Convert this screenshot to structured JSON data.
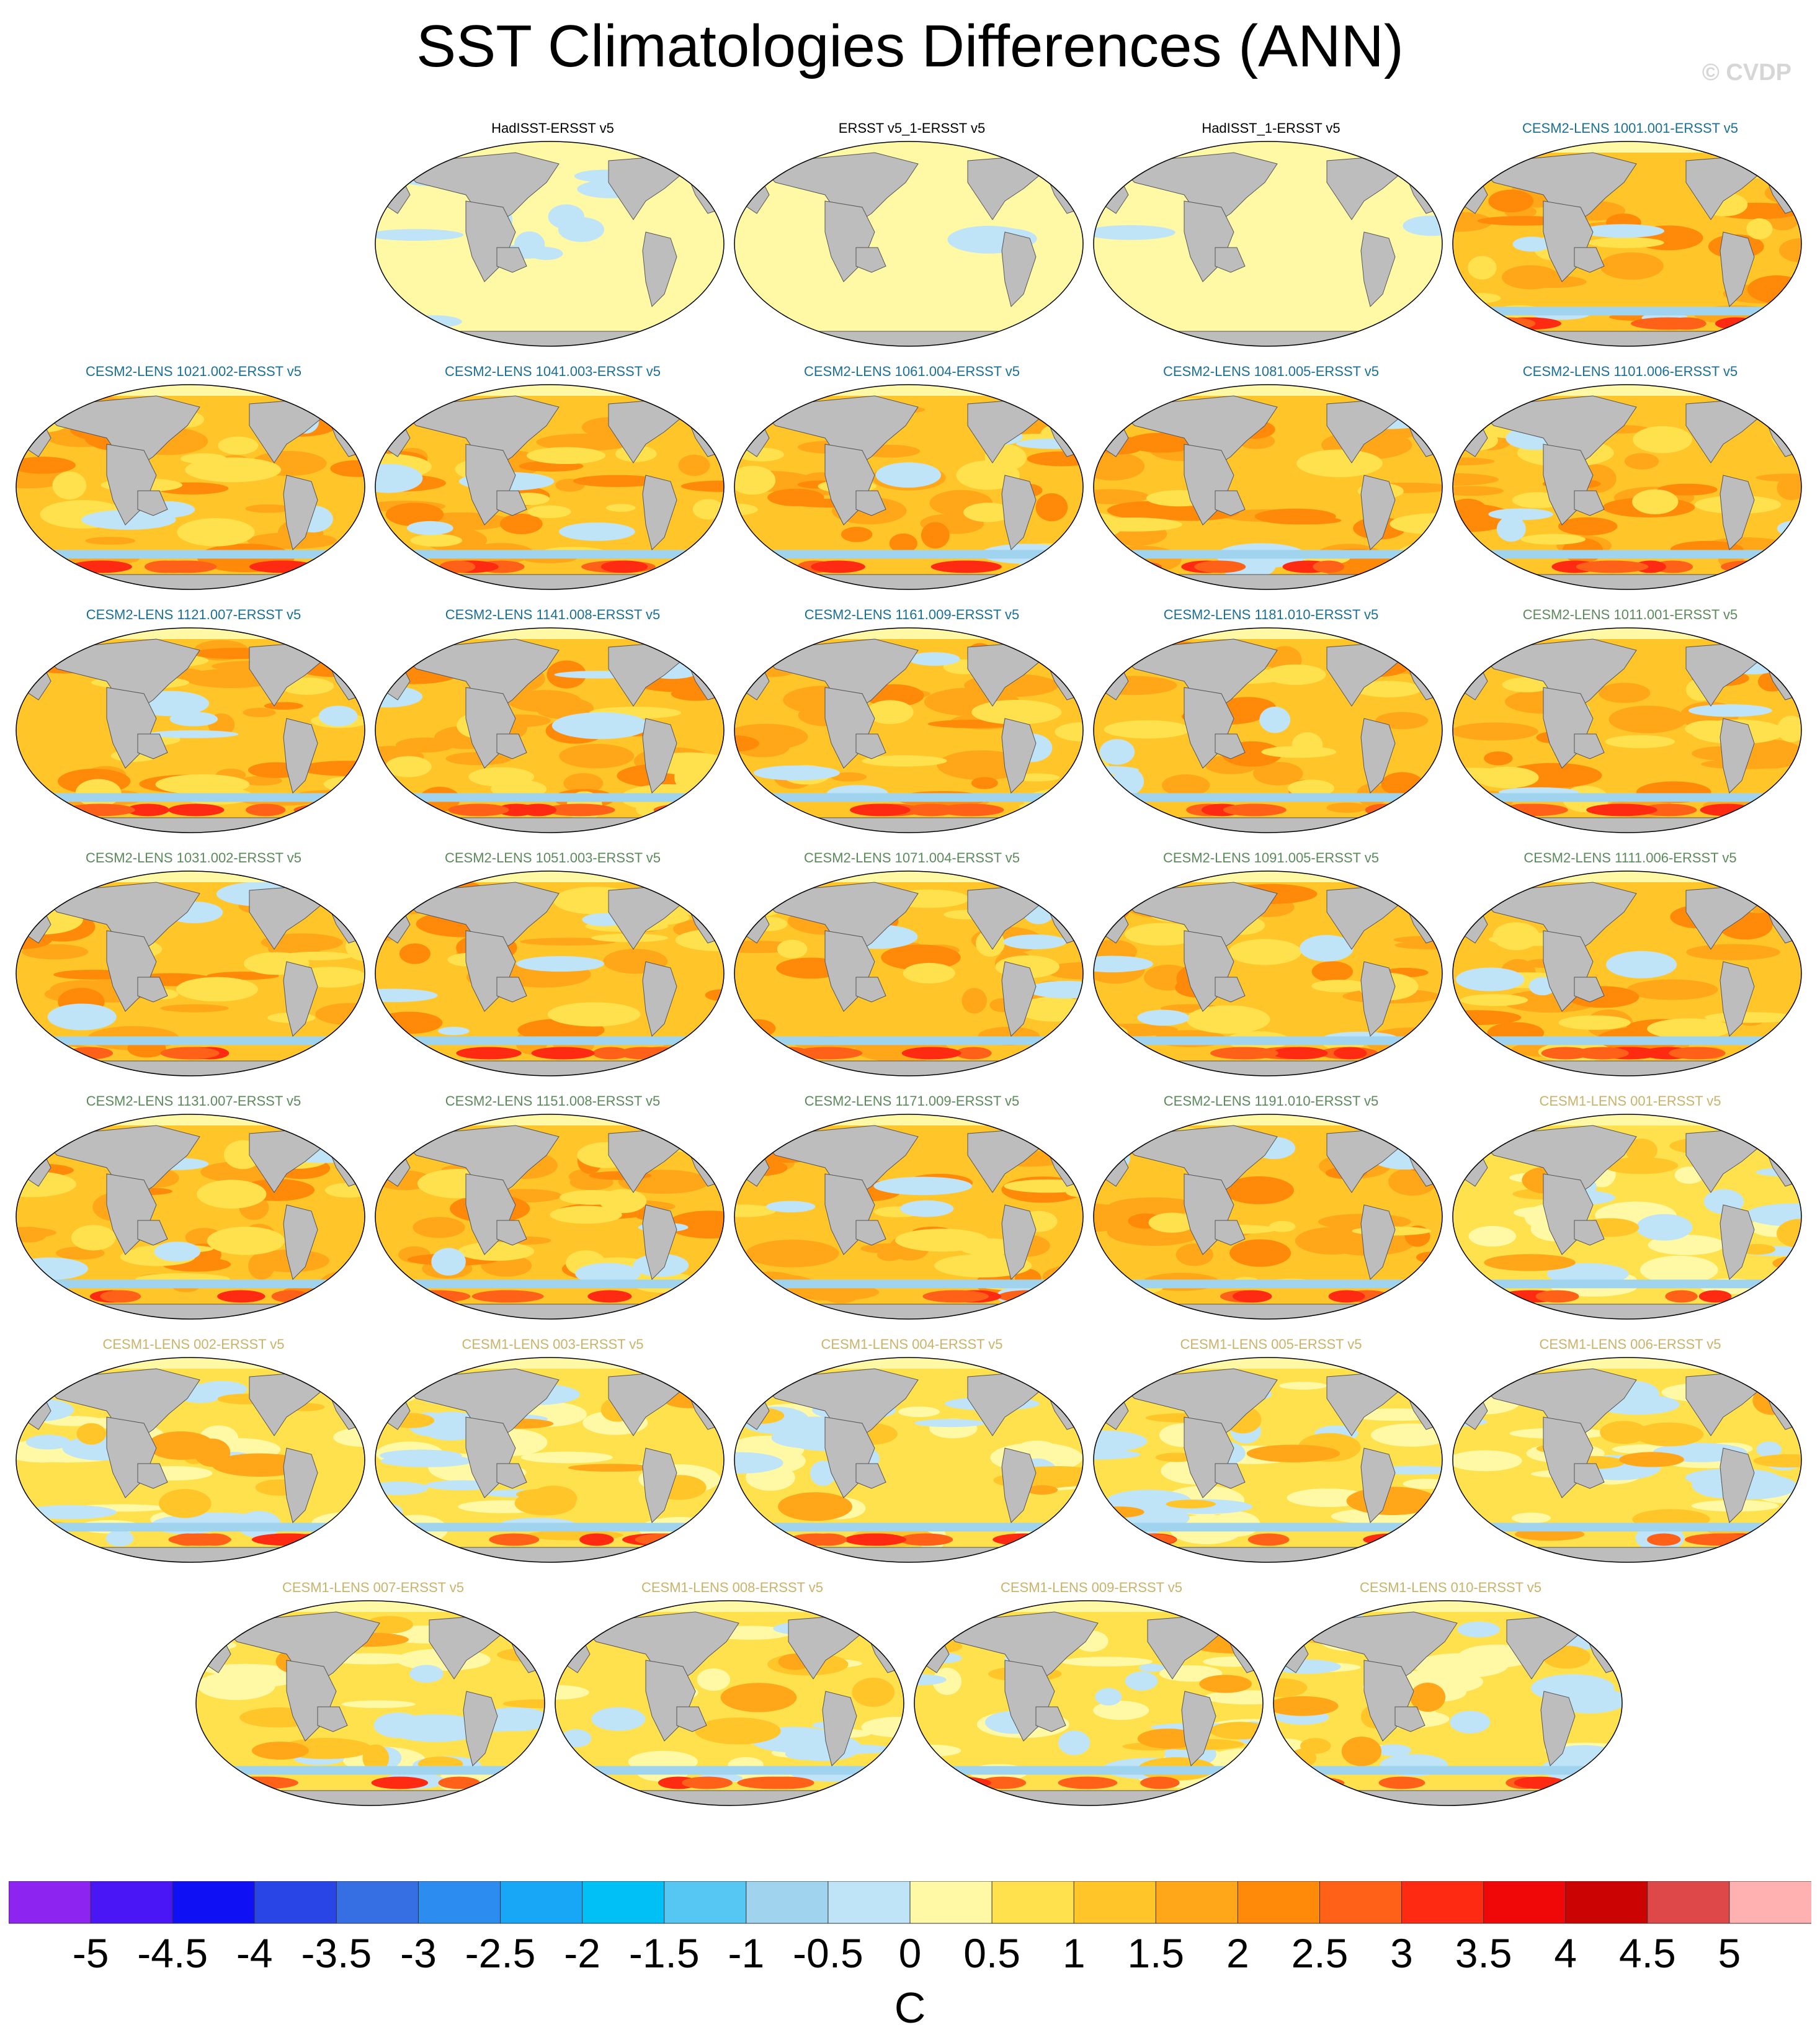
{
  "title": "SST Climatologies Differences (ANN)",
  "watermark": "© CVDP",
  "panels": [
    {
      "label": "HadISST-ERSST v5",
      "group": "obs",
      "row": 0,
      "col": 1
    },
    {
      "label": "ERSST v5_1-ERSST v5",
      "group": "obs2",
      "row": 0,
      "col": 2
    },
    {
      "label": "HadISST_1-ERSST v5",
      "group": "obs2",
      "row": 0,
      "col": 3
    },
    {
      "label": "CESM2-LENS 1001.001-ERSST v5",
      "group": "cesm2a",
      "row": 0,
      "col": 4
    },
    {
      "label": "CESM2-LENS 1021.002-ERSST v5",
      "group": "cesm2a",
      "row": 1,
      "col": 0
    },
    {
      "label": "CESM2-LENS 1041.003-ERSST v5",
      "group": "cesm2a",
      "row": 1,
      "col": 1
    },
    {
      "label": "CESM2-LENS 1061.004-ERSST v5",
      "group": "cesm2a",
      "row": 1,
      "col": 2
    },
    {
      "label": "CESM2-LENS 1081.005-ERSST v5",
      "group": "cesm2a",
      "row": 1,
      "col": 3
    },
    {
      "label": "CESM2-LENS 1101.006-ERSST v5",
      "group": "cesm2a",
      "row": 1,
      "col": 4
    },
    {
      "label": "CESM2-LENS 1121.007-ERSST v5",
      "group": "cesm2a",
      "row": 2,
      "col": 0
    },
    {
      "label": "CESM2-LENS 1141.008-ERSST v5",
      "group": "cesm2a",
      "row": 2,
      "col": 1
    },
    {
      "label": "CESM2-LENS 1161.009-ERSST v5",
      "group": "cesm2a",
      "row": 2,
      "col": 2
    },
    {
      "label": "CESM2-LENS 1181.010-ERSST v5",
      "group": "cesm2a",
      "row": 2,
      "col": 3
    },
    {
      "label": "CESM2-LENS 1011.001-ERSST v5",
      "group": "cesm2b",
      "row": 2,
      "col": 4
    },
    {
      "label": "CESM2-LENS 1031.002-ERSST v5",
      "group": "cesm2b",
      "row": 3,
      "col": 0
    },
    {
      "label": "CESM2-LENS 1051.003-ERSST v5",
      "group": "cesm2b",
      "row": 3,
      "col": 1
    },
    {
      "label": "CESM2-LENS 1071.004-ERSST v5",
      "group": "cesm2b",
      "row": 3,
      "col": 2
    },
    {
      "label": "CESM2-LENS 1091.005-ERSST v5",
      "group": "cesm2b",
      "row": 3,
      "col": 3
    },
    {
      "label": "CESM2-LENS 1111.006-ERSST v5",
      "group": "cesm2b",
      "row": 3,
      "col": 4
    },
    {
      "label": "CESM2-LENS 1131.007-ERSST v5",
      "group": "cesm2b",
      "row": 4,
      "col": 0
    },
    {
      "label": "CESM2-LENS 1151.008-ERSST v5",
      "group": "cesm2b",
      "row": 4,
      "col": 1
    },
    {
      "label": "CESM2-LENS 1171.009-ERSST v5",
      "group": "cesm2b",
      "row": 4,
      "col": 2
    },
    {
      "label": "CESM2-LENS 1191.010-ERSST v5",
      "group": "cesm2b",
      "row": 4,
      "col": 3
    },
    {
      "label": "CESM1-LENS 001-ERSST v5",
      "group": "cesm1",
      "row": 4,
      "col": 4
    },
    {
      "label": "CESM1-LENS 002-ERSST v5",
      "group": "cesm1",
      "row": 5,
      "col": 0
    },
    {
      "label": "CESM1-LENS 003-ERSST v5",
      "group": "cesm1",
      "row": 5,
      "col": 1
    },
    {
      "label": "CESM1-LENS 004-ERSST v5",
      "group": "cesm1",
      "row": 5,
      "col": 2
    },
    {
      "label": "CESM1-LENS 005-ERSST v5",
      "group": "cesm1",
      "row": 5,
      "col": 3
    },
    {
      "label": "CESM1-LENS 006-ERSST v5",
      "group": "cesm1",
      "row": 5,
      "col": 4
    },
    {
      "label": "CESM1-LENS 007-ERSST v5",
      "group": "cesm1",
      "row": 6,
      "col": 0.5
    },
    {
      "label": "CESM1-LENS 008-ERSST v5",
      "group": "cesm1",
      "row": 6,
      "col": 1.5
    },
    {
      "label": "CESM1-LENS 009-ERSST v5",
      "group": "cesm1",
      "row": 6,
      "col": 2.5
    },
    {
      "label": "CESM1-LENS 010-ERSST v5",
      "group": "cesm1",
      "row": 6,
      "col": 3.5
    }
  ],
  "group_colors": {
    "obs": "#000000",
    "obs2": "#000000",
    "cesm2a": "#1a6f97",
    "cesm2b": "#5b8a5b",
    "cesm1": "#c9b36a"
  },
  "colorbar": {
    "units": "C",
    "colors": [
      "#8d24f0",
      "#4a16f5",
      "#1010f5",
      "#2a45e6",
      "#356fe3",
      "#2c8cf0",
      "#18a6f7",
      "#00c0f5",
      "#56c6f3",
      "#9fd3ee",
      "#bfe4f7",
      "#fff9a6",
      "#ffe14d",
      "#ffc529",
      "#ffa719",
      "#ff8a0a",
      "#ff6119",
      "#ff2a12",
      "#f00808",
      "#cc0303",
      "#de4848",
      "#ffb0b0"
    ],
    "tick_labels": [
      "-5",
      "-4.5",
      "-4",
      "-3.5",
      "-3",
      "-2.5",
      "-2",
      "-1.5",
      "-1",
      "-0.5",
      "0",
      "0.5",
      "1",
      "1.5",
      "2",
      "2.5",
      "3",
      "3.5",
      "4",
      "4.5",
      "5"
    ]
  },
  "chart_data": {
    "type": "heatmap",
    "title": "SST Climatologies Differences (ANN)",
    "projection": "global map grid",
    "n_panels": 33,
    "color_scale": {
      "min": -5,
      "max": 5,
      "step": 0.5,
      "units": "C"
    },
    "panel_labels": [
      "HadISST-ERSST v5",
      "ERSST v5_1-ERSST v5",
      "HadISST_1-ERSST v5",
      "CESM2-LENS 1001.001-ERSST v5",
      "CESM2-LENS 1021.002-ERSST v5",
      "CESM2-LENS 1041.003-ERSST v5",
      "CESM2-LENS 1061.004-ERSST v5",
      "CESM2-LENS 1081.005-ERSST v5",
      "CESM2-LENS 1101.006-ERSST v5",
      "CESM2-LENS 1121.007-ERSST v5",
      "CESM2-LENS 1141.008-ERSST v5",
      "CESM2-LENS 1161.009-ERSST v5",
      "CESM2-LENS 1181.010-ERSST v5",
      "CESM2-LENS 1011.001-ERSST v5",
      "CESM2-LENS 1031.002-ERSST v5",
      "CESM2-LENS 1051.003-ERSST v5",
      "CESM2-LENS 1071.004-ERSST v5",
      "CESM2-LENS 1091.005-ERSST v5",
      "CESM2-LENS 1111.006-ERSST v5",
      "CESM2-LENS 1131.007-ERSST v5",
      "CESM2-LENS 1151.008-ERSST v5",
      "CESM2-LENS 1171.009-ERSST v5",
      "CESM2-LENS 1191.010-ERSST v5",
      "CESM1-LENS 001-ERSST v5",
      "CESM1-LENS 002-ERSST v5",
      "CESM1-LENS 003-ERSST v5",
      "CESM1-LENS 004-ERSST v5",
      "CESM1-LENS 005-ERSST v5",
      "CESM1-LENS 006-ERSST v5",
      "CESM1-LENS 007-ERSST v5",
      "CESM1-LENS 008-ERSST v5",
      "CESM1-LENS 009-ERSST v5",
      "CESM1-LENS 010-ERSST v5"
    ]
  }
}
